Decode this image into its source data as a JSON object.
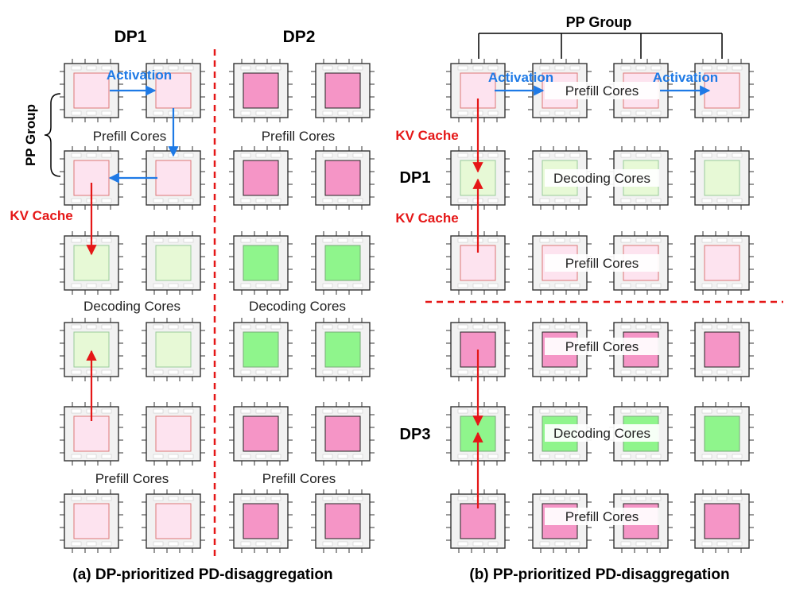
{
  "panel_a": {
    "caption": "(a) DP-prioritized PD-disaggregation",
    "dp1_title": "DP1",
    "dp2_title": "DP2",
    "pp_group_label": "PP Group",
    "activation_label": "Activation",
    "kv_cache_label": "KV Cache",
    "labels": {
      "prefill_top_dp1": "Prefill Cores",
      "prefill_top_dp2": "Prefill Cores",
      "decoding_dp1": "Decoding Cores",
      "decoding_dp2": "Decoding Cores",
      "prefill_bottom_dp1": "Prefill Cores",
      "prefill_bottom_dp2": "Prefill Cores"
    }
  },
  "panel_b": {
    "caption": "(b) PP-prioritized PD-disaggregation",
    "pp_group_label": "PP Group",
    "activation_label_1": "Activation",
    "activation_label_2": "Activation",
    "kv_cache_label_1": "KV Cache",
    "kv_cache_label_2": "KV Cache",
    "dp1_label": "DP1",
    "dp3_label": "DP3",
    "labels": {
      "prefill_row1": "Prefill Cores",
      "decoding_row2": "Decoding Cores",
      "prefill_row3": "Prefill Cores",
      "prefill_row4": "Prefill Cores",
      "decoding_row5": "Decoding Cores",
      "prefill_row6": "Prefill Cores"
    }
  },
  "colors": {
    "prefill_light": "#fde3ef",
    "prefill_dark": "#f595c6",
    "decoding_light": "#e7f9d6",
    "decoding_dark": "#8ff58c",
    "activation_arrow": "#1e7ae6",
    "kv_arrow": "#e51717",
    "divider": "#e51717"
  }
}
